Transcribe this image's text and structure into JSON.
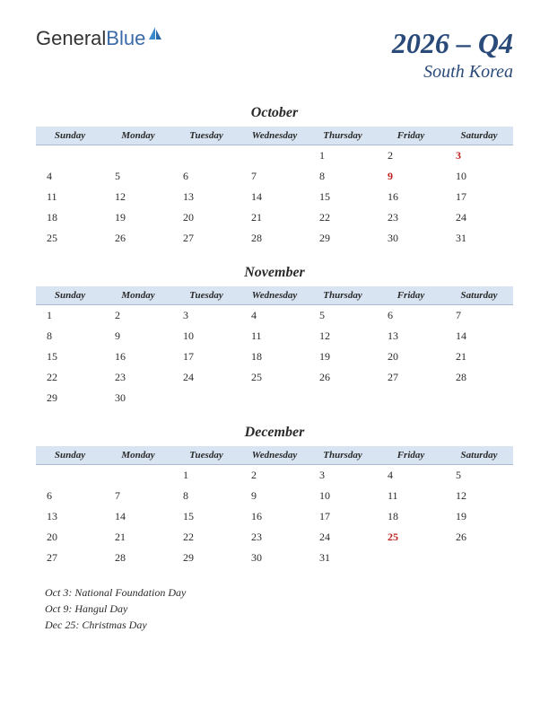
{
  "logo": {
    "text_general": "General",
    "text_blue": "Blue"
  },
  "header": {
    "quarter": "2026 – Q4",
    "country": "South Korea"
  },
  "daynames": [
    "Sunday",
    "Monday",
    "Tuesday",
    "Wednesday",
    "Thursday",
    "Friday",
    "Saturday"
  ],
  "months": [
    {
      "name": "October",
      "weeks": [
        [
          "",
          "",
          "",
          "",
          "1",
          "2",
          "3"
        ],
        [
          "4",
          "5",
          "6",
          "7",
          "8",
          "9",
          "10"
        ],
        [
          "11",
          "12",
          "13",
          "14",
          "15",
          "16",
          "17"
        ],
        [
          "18",
          "19",
          "20",
          "21",
          "22",
          "23",
          "24"
        ],
        [
          "25",
          "26",
          "27",
          "28",
          "29",
          "30",
          "31"
        ]
      ],
      "holidays": [
        "3",
        "9"
      ]
    },
    {
      "name": "November",
      "weeks": [
        [
          "1",
          "2",
          "3",
          "4",
          "5",
          "6",
          "7"
        ],
        [
          "8",
          "9",
          "10",
          "11",
          "12",
          "13",
          "14"
        ],
        [
          "15",
          "16",
          "17",
          "18",
          "19",
          "20",
          "21"
        ],
        [
          "22",
          "23",
          "24",
          "25",
          "26",
          "27",
          "28"
        ],
        [
          "29",
          "30",
          "",
          "",
          "",
          "",
          ""
        ]
      ],
      "holidays": []
    },
    {
      "name": "December",
      "weeks": [
        [
          "",
          "",
          "1",
          "2",
          "3",
          "4",
          "5"
        ],
        [
          "6",
          "7",
          "8",
          "9",
          "10",
          "11",
          "12"
        ],
        [
          "13",
          "14",
          "15",
          "16",
          "17",
          "18",
          "19"
        ],
        [
          "20",
          "21",
          "22",
          "23",
          "24",
          "25",
          "26"
        ],
        [
          "27",
          "28",
          "29",
          "30",
          "31",
          "",
          ""
        ]
      ],
      "holidays": [
        "25"
      ]
    }
  ],
  "holiday_list": [
    "Oct 3: National Foundation Day",
    "Oct 9: Hangul Day",
    "Dec 25: Christmas Day"
  ],
  "colors": {
    "header_bg": "#d8e4f2",
    "header_border": "#aab8d0",
    "title_color": "#2a4a7a",
    "holiday_color": "#c02020",
    "text_color": "#2a2a2a"
  }
}
